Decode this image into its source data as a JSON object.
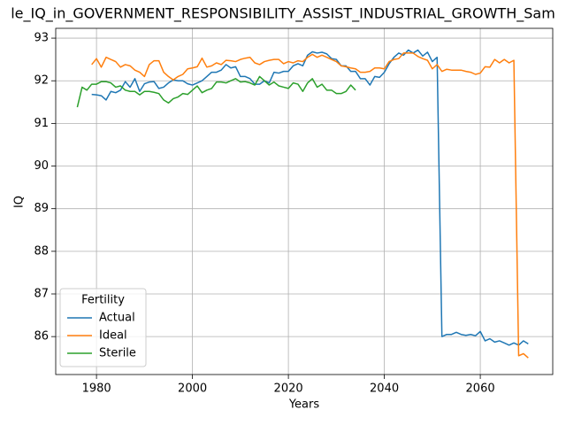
{
  "chart_data": {
    "type": "line",
    "title": "le_IQ_in_GOVERNMENT_RESPONSIBILITY_ASSIST_INDUSTRIAL_GROWTH_Sam",
    "xlabel": "Years",
    "ylabel": "IQ",
    "legend_title": "Fertility",
    "legend": "lower left",
    "grid": true,
    "x": [
      1976,
      1977,
      1978,
      1979,
      1980,
      1981,
      1982,
      1983,
      1984,
      1985,
      1986,
      1987,
      1988,
      1989,
      1990,
      1991,
      1992,
      1993,
      1994,
      1995,
      1996,
      1997,
      1998,
      1999,
      2000,
      2001,
      2002,
      2003,
      2004,
      2005,
      2006,
      2007,
      2008,
      2009,
      2010,
      2011,
      2012,
      2013,
      2014,
      2015,
      2016,
      2017,
      2018,
      2019,
      2020,
      2021,
      2022,
      2023,
      2024,
      2025,
      2026,
      2027,
      2028,
      2029,
      2030,
      2031,
      2032,
      2033,
      2034,
      2035,
      2036,
      2037,
      2038,
      2039,
      2040,
      2041,
      2042,
      2043,
      2044,
      2045,
      2046,
      2047,
      2048,
      2049,
      2050,
      2051,
      2052,
      2053,
      2054,
      2055,
      2056,
      2057,
      2058,
      2059,
      2060,
      2061,
      2062,
      2063,
      2064,
      2065,
      2066,
      2067,
      2068,
      2069,
      2070
    ],
    "xlim": [
      1971.5,
      2075.1
    ],
    "xticks": [
      1980,
      2000,
      2020,
      2040,
      2060
    ],
    "ylim": [
      85.11,
      93.23
    ],
    "yticks": [
      86,
      87,
      88,
      89,
      90,
      91,
      92,
      93
    ],
    "series": [
      {
        "name": "Actual",
        "color": "#1f77b4",
        "values": [
          null,
          null,
          null,
          91.68,
          91.67,
          91.65,
          91.55,
          91.75,
          91.72,
          91.78,
          91.98,
          91.85,
          92.05,
          91.75,
          91.93,
          91.97,
          91.98,
          91.82,
          91.85,
          91.95,
          92.02,
          92.0,
          92.0,
          91.93,
          91.9,
          91.95,
          92.0,
          92.1,
          92.2,
          92.2,
          92.25,
          92.38,
          92.3,
          92.33,
          92.1,
          92.1,
          92.05,
          91.92,
          91.92,
          92.0,
          91.95,
          92.2,
          92.18,
          92.22,
          92.22,
          92.35,
          92.4,
          92.35,
          92.6,
          92.68,
          92.65,
          92.67,
          92.63,
          92.52,
          92.5,
          92.35,
          92.35,
          92.22,
          92.22,
          92.05,
          92.05,
          91.9,
          92.1,
          92.08,
          92.2,
          92.4,
          92.55,
          92.65,
          92.6,
          92.72,
          92.65,
          92.72,
          92.58,
          92.67,
          92.45,
          92.55,
          86.0,
          86.05,
          86.05,
          86.1,
          86.05,
          86.03,
          86.05,
          86.02,
          86.12,
          85.9,
          85.95,
          85.87,
          85.9,
          85.85,
          85.8,
          85.85,
          85.8,
          85.9,
          85.83
        ]
      },
      {
        "name": "Ideal",
        "color": "#ff7f0e",
        "values": [
          null,
          null,
          null,
          92.38,
          92.52,
          92.32,
          92.55,
          92.5,
          92.45,
          92.32,
          92.38,
          92.35,
          92.25,
          92.2,
          92.1,
          92.38,
          92.47,
          92.47,
          92.2,
          92.1,
          92.02,
          92.1,
          92.15,
          92.28,
          92.3,
          92.33,
          92.53,
          92.32,
          92.35,
          92.42,
          92.38,
          92.48,
          92.47,
          92.45,
          92.5,
          92.53,
          92.55,
          92.42,
          92.38,
          92.45,
          92.48,
          92.5,
          92.5,
          92.4,
          92.45,
          92.42,
          92.47,
          92.45,
          92.55,
          92.62,
          92.55,
          92.6,
          92.55,
          92.5,
          92.45,
          92.35,
          92.33,
          92.3,
          92.28,
          92.2,
          92.2,
          92.22,
          92.3,
          92.3,
          92.28,
          92.45,
          92.5,
          92.52,
          92.65,
          92.65,
          92.65,
          92.57,
          92.52,
          92.48,
          92.28,
          92.38,
          92.22,
          92.27,
          92.25,
          92.25,
          92.25,
          92.22,
          92.2,
          92.15,
          92.18,
          92.33,
          92.32,
          92.5,
          92.42,
          92.5,
          92.42,
          92.48,
          85.55,
          85.6,
          85.5
        ]
      },
      {
        "name": "Sterile",
        "color": "#2ca02c",
        "values": [
          91.38,
          91.85,
          91.78,
          91.92,
          91.92,
          91.98,
          91.98,
          91.95,
          91.85,
          91.88,
          91.78,
          91.75,
          91.75,
          91.67,
          91.75,
          91.75,
          91.73,
          91.7,
          91.55,
          91.48,
          91.58,
          91.62,
          91.7,
          91.68,
          91.78,
          91.88,
          91.72,
          91.78,
          91.82,
          91.97,
          91.97,
          91.95,
          92.0,
          92.05,
          91.97,
          91.98,
          91.95,
          91.9,
          92.1,
          92.0,
          91.9,
          91.97,
          91.88,
          91.85,
          91.82,
          91.95,
          91.92,
          91.75,
          91.95,
          92.05,
          91.85,
          91.92,
          91.78,
          91.78,
          91.7,
          91.7,
          91.75,
          91.9,
          91.78,
          null,
          null,
          null,
          null,
          null,
          null,
          null,
          null,
          null,
          null,
          null,
          null,
          null,
          null,
          null,
          null,
          null,
          null,
          null,
          null,
          null,
          null,
          null,
          null,
          null,
          null,
          null,
          null,
          null,
          null,
          null,
          null,
          null,
          null,
          null,
          null
        ]
      }
    ]
  }
}
